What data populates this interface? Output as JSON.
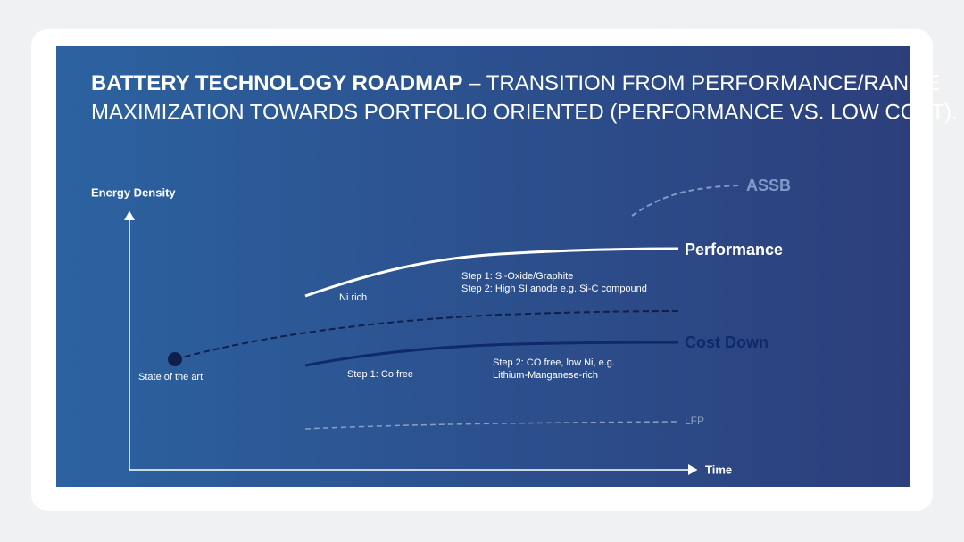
{
  "title": {
    "bold": "BATTERY TECHNOLOGY ROADMAP",
    "line1": "– TRANSITION FROM PERFORMANCE/RANGE",
    "line2": "MAXIMIZATION TOWARDS PORTFOLIO ORIENTED (PERFORMANCE VS. LOW COST)."
  },
  "axes": {
    "y": "Energy Density",
    "x": "Time"
  },
  "curves": [
    {
      "label": "ASSB"
    },
    {
      "label": "Performance"
    },
    {
      "label": "Cost Down"
    },
    {
      "label": "LFP"
    }
  ],
  "annotations": {
    "ni_rich": "Ni rich",
    "perf_step1": "Step 1: Si-Oxide/Graphite",
    "perf_step2": "Step 2: High SI anode e.g. Si-C compound",
    "state_of_the_art": "State of the art",
    "cost_step1": "Step 1: Co free",
    "cost_step2_a": "Step 2: CO free, low Ni, e.g.",
    "cost_step2_b": "Lithium-Manganese-rich"
  }
}
